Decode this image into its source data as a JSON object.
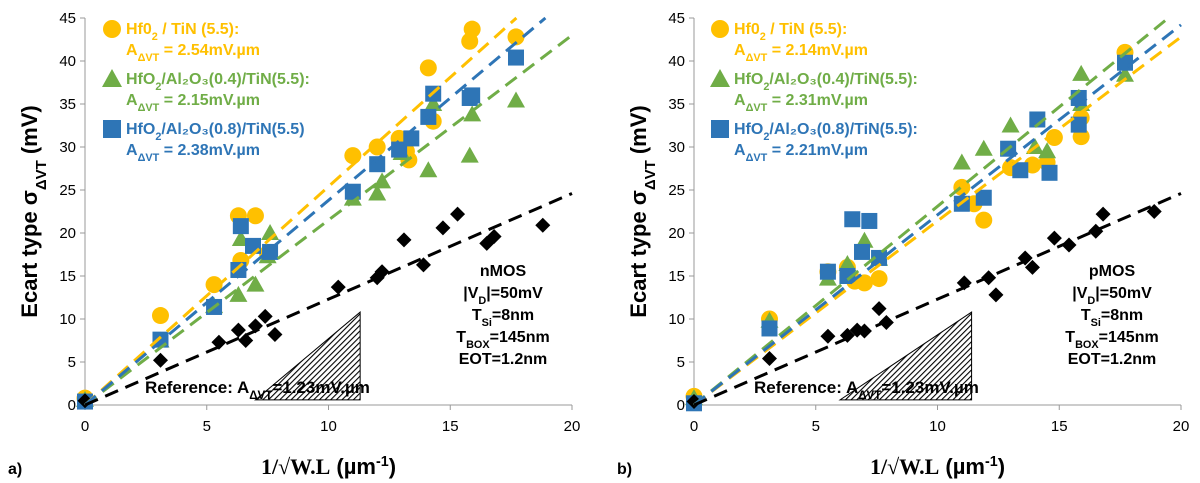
{
  "colors": {
    "hfo2_tin": "#FFC000",
    "hfo2_al2o3_04": "#70AD47",
    "hfo2_al2o3_08": "#2E75B6",
    "reference": "#000000"
  },
  "chart_data": [
    {
      "type": "scatter",
      "panel_label": "a)",
      "device_label": "nMOS",
      "conditions": [
        {
          "pre": "|V",
          "sub": "D",
          "post": "|=50mV"
        },
        {
          "pre": "T",
          "sub": "Si",
          "post": "=8nm"
        },
        {
          "pre": "T",
          "sub": "BOX",
          "post": "=145nm"
        },
        {
          "pre": "EOT=1.2nm",
          "sub": "",
          "post": ""
        }
      ],
      "xlabel": {
        "formula": "1/√W.L",
        "unit": " (µm",
        "exp": "-1",
        "close": ")"
      },
      "ylabel": {
        "main": "Ecart type σ",
        "sub": "ΔVT",
        "unit": " (mV)"
      },
      "xlim": [
        0,
        20
      ],
      "ylim": [
        0,
        45
      ],
      "xticks": [
        0,
        5,
        10,
        15,
        20
      ],
      "yticks": [
        0,
        5,
        10,
        15,
        20,
        25,
        30,
        35,
        40,
        45
      ],
      "reference": {
        "text_pre": "Reference: A",
        "text_sub": "ΔVT",
        "text_post": "=1.23mV.µm",
        "slope": 1.23,
        "points": [
          [
            0,
            0.5
          ],
          [
            3.1,
            5.2
          ],
          [
            5.5,
            7.3
          ],
          [
            6.3,
            8.7
          ],
          [
            6.6,
            7.5
          ],
          [
            7,
            9.2
          ],
          [
            7.4,
            10.3
          ],
          [
            7.8,
            8.2
          ],
          [
            10.4,
            13.7
          ],
          [
            12,
            14.8
          ],
          [
            12.2,
            15.5
          ],
          [
            13.1,
            19.2
          ],
          [
            13.9,
            16.3
          ],
          [
            14.7,
            20.6
          ],
          [
            15.3,
            22.2
          ],
          [
            16.5,
            18.8
          ],
          [
            16.8,
            19.6
          ],
          [
            18.8,
            20.9
          ]
        ]
      },
      "series": [
        {
          "name": "Hf0",
          "name_sub": "2",
          "name_post": " / TiN (5.5):",
          "marker": "circle",
          "a_label": "A",
          "a_sub": "ΔVT",
          "a_post": " = 2.54mV.µm",
          "slope": 2.54,
          "points": [
            [
              0,
              0.8
            ],
            [
              3.1,
              10.4
            ],
            [
              5.3,
              14
            ],
            [
              6.3,
              22
            ],
            [
              6.4,
              16.8
            ],
            [
              7,
              22
            ],
            [
              7.5,
              17.6
            ],
            [
              11,
              29
            ],
            [
              12,
              30
            ],
            [
              12.9,
              31
            ],
            [
              13.2,
              29.5
            ],
            [
              13.3,
              28.5
            ],
            [
              14.1,
              39.2
            ],
            [
              14.3,
              33
            ],
            [
              15.8,
              42.3
            ],
            [
              15.9,
              43.7
            ],
            [
              17.7,
              42.8
            ]
          ]
        },
        {
          "name": "HfO",
          "name_sub": "2",
          "name_post": "/Al₂O₃(0.4)/TiN(5.5):",
          "marker": "triangle",
          "a_label": "A",
          "a_sub": "ΔVT",
          "a_post": " = 2.15mV.µm",
          "slope": 2.15,
          "points": [
            [
              0,
              0.6
            ],
            [
              3.1,
              7.5
            ],
            [
              5.3,
              11.5
            ],
            [
              6.3,
              12.8
            ],
            [
              6.4,
              19.3
            ],
            [
              7,
              14
            ],
            [
              7.5,
              17.3
            ],
            [
              7.6,
              20
            ],
            [
              11,
              24
            ],
            [
              12,
              24.6
            ],
            [
              12.2,
              26
            ],
            [
              13,
              29.3
            ],
            [
              14.1,
              27.3
            ],
            [
              14.3,
              35
            ],
            [
              15.8,
              29
            ],
            [
              15.9,
              33.8
            ],
            [
              17.7,
              35.4
            ]
          ]
        },
        {
          "name": "HfO",
          "name_sub": "2",
          "name_post": "/Al₂O₃(0.8)/TiN(5.5)",
          "marker": "square",
          "a_label": "A",
          "a_sub": "ΔVT",
          "a_post": " = 2.38mV.µm",
          "slope": 2.38,
          "points": [
            [
              0,
              0.4
            ],
            [
              3.1,
              7.6
            ],
            [
              5.3,
              11.4
            ],
            [
              6.3,
              15.7
            ],
            [
              6.4,
              20.8
            ],
            [
              6.9,
              18.5
            ],
            [
              7.6,
              17.8
            ],
            [
              11,
              24.8
            ],
            [
              12,
              28
            ],
            [
              12.9,
              29.7
            ],
            [
              13.4,
              31
            ],
            [
              14.1,
              33.5
            ],
            [
              14.3,
              36.2
            ],
            [
              15.8,
              35.7
            ],
            [
              15.9,
              36
            ],
            [
              17.7,
              40.4
            ]
          ]
        }
      ]
    },
    {
      "type": "scatter",
      "panel_label": "b)",
      "device_label": "pMOS",
      "conditions": [
        {
          "pre": "|V",
          "sub": "D",
          "post": "|=50mV"
        },
        {
          "pre": "T",
          "sub": "Si",
          "post": "=8nm"
        },
        {
          "pre": "T",
          "sub": "BOX",
          "post": "=145nm"
        },
        {
          "pre": "EOT=1.2nm",
          "sub": "",
          "post": ""
        }
      ],
      "xlabel": {
        "formula": "1/√W.L",
        "unit": " (µm",
        "exp": "-1",
        "close": ")"
      },
      "ylabel": {
        "main": "Ecart type σ",
        "sub": "ΔVT",
        "unit": " (mV)"
      },
      "xlim": [
        0,
        20
      ],
      "ylim": [
        0,
        45
      ],
      "xticks": [
        0,
        5,
        10,
        15,
        20
      ],
      "yticks": [
        0,
        5,
        10,
        15,
        20,
        25,
        30,
        35,
        40,
        45
      ],
      "reference": {
        "text_pre": "Reference: A",
        "text_sub": "ΔVT",
        "text_post": "=1.23mV.µm",
        "slope": 1.23,
        "points": [
          [
            0,
            0.4
          ],
          [
            3.1,
            5.4
          ],
          [
            5.5,
            8
          ],
          [
            6.3,
            8.1
          ],
          [
            6.7,
            8.7
          ],
          [
            7,
            8.6
          ],
          [
            7.6,
            11.2
          ],
          [
            7.9,
            9.6
          ],
          [
            11.1,
            14.2
          ],
          [
            12.1,
            14.8
          ],
          [
            12.4,
            12.8
          ],
          [
            13.6,
            17.1
          ],
          [
            13.9,
            16
          ],
          [
            14.8,
            19.4
          ],
          [
            15.4,
            18.6
          ],
          [
            16.5,
            20.2
          ],
          [
            16.8,
            22.2
          ],
          [
            18.9,
            22.5
          ]
        ]
      },
      "series": [
        {
          "name": "Hf0",
          "name_sub": "2",
          "name_post": " / TiN (5.5):",
          "marker": "circle",
          "a_label": "A",
          "a_sub": "ΔVT",
          "a_post": " = 2.14mV.µm",
          "slope": 2.14,
          "points": [
            [
              0,
              1
            ],
            [
              3.1,
              10
            ],
            [
              5.5,
              15.5
            ],
            [
              6.3,
              16
            ],
            [
              6.6,
              14.4
            ],
            [
              7,
              14.2
            ],
            [
              7.6,
              14.7
            ],
            [
              11,
              25.3
            ],
            [
              11.5,
              23.4
            ],
            [
              11.9,
              21.5
            ],
            [
              13,
              27.6
            ],
            [
              13.9,
              27.9
            ],
            [
              14.5,
              28.2
            ],
            [
              14.8,
              31.1
            ],
            [
              15.9,
              31.2
            ],
            [
              15.9,
              33.4
            ],
            [
              17.7,
              41
            ]
          ]
        },
        {
          "name": "HfO",
          "name_sub": "2",
          "name_post": "/Al₂O₃(0.4)/TiN(5.5):",
          "marker": "triangle",
          "a_label": "A",
          "a_sub": "ΔVT",
          "a_post": " = 2.31mV.µm",
          "slope": 2.31,
          "points": [
            [
              0,
              0.8
            ],
            [
              3.1,
              9.8
            ],
            [
              5.5,
              14.7
            ],
            [
              6.3,
              16.4
            ],
            [
              7,
              19.1
            ],
            [
              7.6,
              17
            ],
            [
              11,
              28.2
            ],
            [
              11.9,
              29.8
            ],
            [
              13,
              32.5
            ],
            [
              14,
              30
            ],
            [
              14.5,
              29.5
            ],
            [
              15.9,
              38.5
            ],
            [
              15.9,
              35
            ],
            [
              17.7,
              38.4
            ]
          ]
        },
        {
          "name": "HfO",
          "name_sub": "2",
          "name_post": "/Al₂O₃(0.8)/TiN(5.5):",
          "marker": "square",
          "a_label": "A",
          "a_sub": "ΔVT",
          "a_post": " = 2.21mV.µm",
          "slope": 2.21,
          "points": [
            [
              0,
              0.2
            ],
            [
              3.1,
              8.9
            ],
            [
              5.5,
              15.5
            ],
            [
              6.3,
              15
            ],
            [
              6.5,
              21.6
            ],
            [
              6.9,
              17.8
            ],
            [
              7.2,
              21.4
            ],
            [
              7.6,
              17.1
            ],
            [
              11,
              23.4
            ],
            [
              11.9,
              24.1
            ],
            [
              12.9,
              29.8
            ],
            [
              13.4,
              27.3
            ],
            [
              14.1,
              33.2
            ],
            [
              14.6,
              27
            ],
            [
              15.8,
              35.7
            ],
            [
              15.8,
              32.6
            ],
            [
              17.7,
              39.8
            ]
          ]
        }
      ]
    }
  ]
}
